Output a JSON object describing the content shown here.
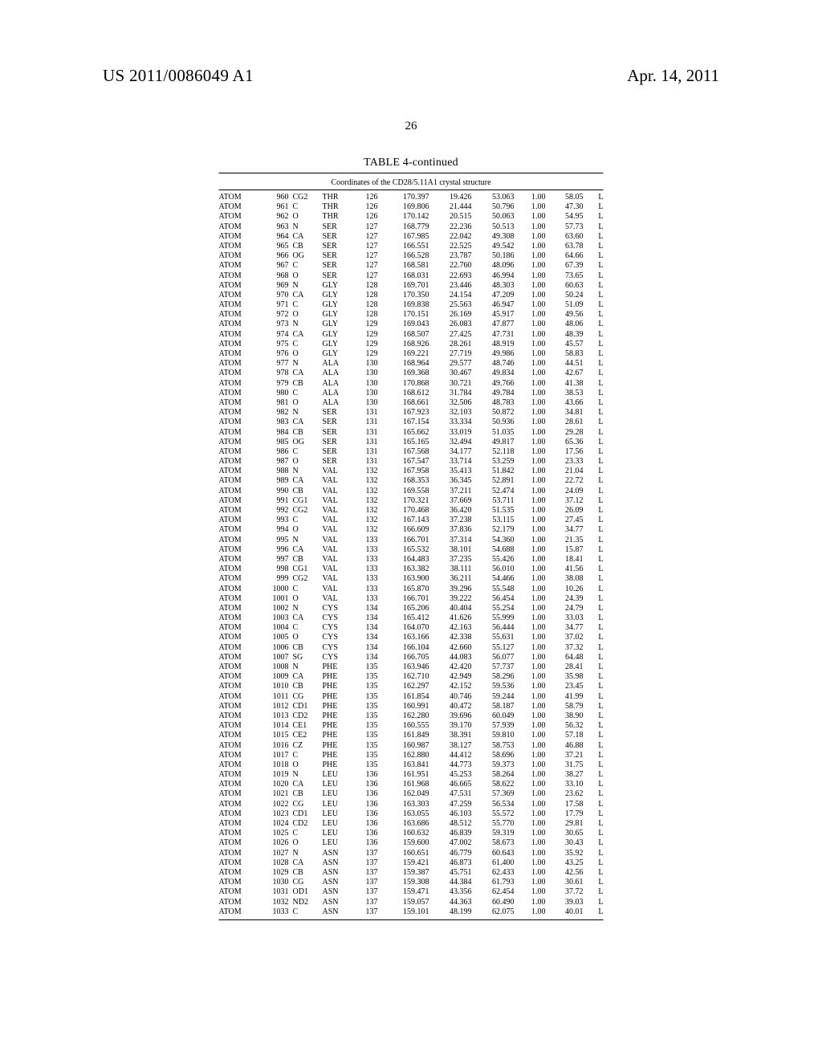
{
  "header": {
    "docnum": "US 2011/0086049 A1",
    "date": "Apr. 14, 2011",
    "pagenum": "26"
  },
  "table": {
    "title": "TABLE 4-continued",
    "subtitle": "Coordinates of the CD28/5.11A1 crystal structure",
    "rows": [
      [
        "ATOM",
        "960",
        "CG2",
        "THR",
        "126",
        "170.397",
        "19.426",
        "53.063",
        "1.00",
        "58.05",
        "L"
      ],
      [
        "ATOM",
        "961",
        "C",
        "THR",
        "126",
        "169.806",
        "21.444",
        "50.796",
        "1.00",
        "47.30",
        "L"
      ],
      [
        "ATOM",
        "962",
        "O",
        "THR",
        "126",
        "170.142",
        "20.515",
        "50.063",
        "1.00",
        "54.95",
        "L"
      ],
      [
        "ATOM",
        "963",
        "N",
        "SER",
        "127",
        "168.779",
        "22.236",
        "50.513",
        "1.00",
        "57.73",
        "L"
      ],
      [
        "ATOM",
        "964",
        "CA",
        "SER",
        "127",
        "167.985",
        "22.042",
        "49.308",
        "1.00",
        "63.60",
        "L"
      ],
      [
        "ATOM",
        "965",
        "CB",
        "SER",
        "127",
        "166.551",
        "22.525",
        "49.542",
        "1.00",
        "63.78",
        "L"
      ],
      [
        "ATOM",
        "966",
        "OG",
        "SER",
        "127",
        "166.528",
        "23.787",
        "50.186",
        "1.00",
        "64.66",
        "L"
      ],
      [
        "ATOM",
        "967",
        "C",
        "SER",
        "127",
        "168.581",
        "22.760",
        "48.096",
        "1.00",
        "67.39",
        "L"
      ],
      [
        "ATOM",
        "968",
        "O",
        "SER",
        "127",
        "168.031",
        "22.693",
        "46.994",
        "1.00",
        "73.65",
        "L"
      ],
      [
        "ATOM",
        "969",
        "N",
        "GLY",
        "128",
        "169.701",
        "23.446",
        "48.303",
        "1.00",
        "60.63",
        "L"
      ],
      [
        "ATOM",
        "970",
        "CA",
        "GLY",
        "128",
        "170.350",
        "24.154",
        "47.209",
        "1.00",
        "50.24",
        "L"
      ],
      [
        "ATOM",
        "971",
        "C",
        "GLY",
        "128",
        "169.838",
        "25.563",
        "46.947",
        "1.00",
        "51.09",
        "L"
      ],
      [
        "ATOM",
        "972",
        "O",
        "GLY",
        "128",
        "170.151",
        "26.169",
        "45.917",
        "1.00",
        "49.56",
        "L"
      ],
      [
        "ATOM",
        "973",
        "N",
        "GLY",
        "129",
        "169.043",
        "26.083",
        "47.877",
        "1.00",
        "48.06",
        "L"
      ],
      [
        "ATOM",
        "974",
        "CA",
        "GLY",
        "129",
        "168.507",
        "27.425",
        "47.731",
        "1.00",
        "48.39",
        "L"
      ],
      [
        "ATOM",
        "975",
        "C",
        "GLY",
        "129",
        "168.926",
        "28.261",
        "48.919",
        "1.00",
        "45.57",
        "L"
      ],
      [
        "ATOM",
        "976",
        "O",
        "GLY",
        "129",
        "169.221",
        "27.719",
        "49.986",
        "1.00",
        "58.83",
        "L"
      ],
      [
        "ATOM",
        "977",
        "N",
        "ALA",
        "130",
        "168.964",
        "29.577",
        "48.746",
        "1.00",
        "44.51",
        "L"
      ],
      [
        "ATOM",
        "978",
        "CA",
        "ALA",
        "130",
        "169.368",
        "30.467",
        "49.834",
        "1.00",
        "42.67",
        "L"
      ],
      [
        "ATOM",
        "979",
        "CB",
        "ALA",
        "130",
        "170.868",
        "30.721",
        "49.766",
        "1.00",
        "41.38",
        "L"
      ],
      [
        "ATOM",
        "980",
        "C",
        "ALA",
        "130",
        "168.612",
        "31.784",
        "49.784",
        "1.00",
        "38.53",
        "L"
      ],
      [
        "ATOM",
        "981",
        "O",
        "ALA",
        "130",
        "168.661",
        "32.506",
        "48.783",
        "1.00",
        "43.66",
        "L"
      ],
      [
        "ATOM",
        "982",
        "N",
        "SER",
        "131",
        "167.923",
        "32.103",
        "50.872",
        "1.00",
        "34.81",
        "L"
      ],
      [
        "ATOM",
        "983",
        "CA",
        "SER",
        "131",
        "167.154",
        "33.334",
        "50.936",
        "1.00",
        "28.61",
        "L"
      ],
      [
        "ATOM",
        "984",
        "CB",
        "SER",
        "131",
        "165.662",
        "33.019",
        "51.035",
        "1.00",
        "29.28",
        "L"
      ],
      [
        "ATOM",
        "985",
        "OG",
        "SER",
        "131",
        "165.165",
        "32.494",
        "49.817",
        "1.00",
        "65.36",
        "L"
      ],
      [
        "ATOM",
        "986",
        "C",
        "SER",
        "131",
        "167.568",
        "34.177",
        "52.118",
        "1.00",
        "17.56",
        "L"
      ],
      [
        "ATOM",
        "987",
        "O",
        "SER",
        "131",
        "167.547",
        "33.714",
        "53.259",
        "1.00",
        "23.33",
        "L"
      ],
      [
        "ATOM",
        "988",
        "N",
        "VAL",
        "132",
        "167.958",
        "35.413",
        "51.842",
        "1.00",
        "21.04",
        "L"
      ],
      [
        "ATOM",
        "989",
        "CA",
        "VAL",
        "132",
        "168.353",
        "36.345",
        "52.891",
        "1.00",
        "22.72",
        "L"
      ],
      [
        "ATOM",
        "990",
        "CB",
        "VAL",
        "132",
        "169.558",
        "37.211",
        "52.474",
        "1.00",
        "24.09",
        "L"
      ],
      [
        "ATOM",
        "991",
        "CG1",
        "VAL",
        "132",
        "170.321",
        "37.669",
        "53.711",
        "1.00",
        "37.12",
        "L"
      ],
      [
        "ATOM",
        "992",
        "CG2",
        "VAL",
        "132",
        "170.468",
        "36.420",
        "51.535",
        "1.00",
        "26.09",
        "L"
      ],
      [
        "ATOM",
        "993",
        "C",
        "VAL",
        "132",
        "167.143",
        "37.238",
        "53.115",
        "1.00",
        "27.45",
        "L"
      ],
      [
        "ATOM",
        "994",
        "O",
        "VAL",
        "132",
        "166.609",
        "37.836",
        "52.179",
        "1.00",
        "34.77",
        "L"
      ],
      [
        "ATOM",
        "995",
        "N",
        "VAL",
        "133",
        "166.701",
        "37.314",
        "54.360",
        "1.00",
        "21.35",
        "L"
      ],
      [
        "ATOM",
        "996",
        "CA",
        "VAL",
        "133",
        "165.532",
        "38.101",
        "54.688",
        "1.00",
        "15.87",
        "L"
      ],
      [
        "ATOM",
        "997",
        "CB",
        "VAL",
        "133",
        "164.483",
        "37.235",
        "55.426",
        "1.00",
        "18.41",
        "L"
      ],
      [
        "ATOM",
        "998",
        "CG1",
        "VAL",
        "133",
        "163.382",
        "38.111",
        "56.010",
        "1.00",
        "41.56",
        "L"
      ],
      [
        "ATOM",
        "999",
        "CG2",
        "VAL",
        "133",
        "163.900",
        "36.211",
        "54.466",
        "1.00",
        "38.08",
        "L"
      ],
      [
        "ATOM",
        "1000",
        "C",
        "VAL",
        "133",
        "165.870",
        "39.296",
        "55.548",
        "1.00",
        "10.26",
        "L"
      ],
      [
        "ATOM",
        "1001",
        "O",
        "VAL",
        "133",
        "166.701",
        "39.222",
        "56.454",
        "1.00",
        "24.39",
        "L"
      ],
      [
        "ATOM",
        "1002",
        "N",
        "CYS",
        "134",
        "165.206",
        "40.404",
        "55.254",
        "1.00",
        "24.79",
        "L"
      ],
      [
        "ATOM",
        "1003",
        "CA",
        "CYS",
        "134",
        "165.412",
        "41.626",
        "55.999",
        "1.00",
        "33.03",
        "L"
      ],
      [
        "ATOM",
        "1004",
        "C",
        "CYS",
        "134",
        "164.070",
        "42.163",
        "56.444",
        "1.00",
        "34.77",
        "L"
      ],
      [
        "ATOM",
        "1005",
        "O",
        "CYS",
        "134",
        "163.166",
        "42.338",
        "55.631",
        "1.00",
        "37.02",
        "L"
      ],
      [
        "ATOM",
        "1006",
        "CB",
        "CYS",
        "134",
        "166.104",
        "42.660",
        "55.127",
        "1.00",
        "37.32",
        "L"
      ],
      [
        "ATOM",
        "1007",
        "SG",
        "CYS",
        "134",
        "166.705",
        "44.083",
        "56.077",
        "1.00",
        "64.48",
        "L"
      ],
      [
        "ATOM",
        "1008",
        "N",
        "PHE",
        "135",
        "163.946",
        "42.420",
        "57.737",
        "1.00",
        "28.41",
        "L"
      ],
      [
        "ATOM",
        "1009",
        "CA",
        "PHE",
        "135",
        "162.710",
        "42.949",
        "58.296",
        "1.00",
        "35.98",
        "L"
      ],
      [
        "ATOM",
        "1010",
        "CB",
        "PHE",
        "135",
        "162.297",
        "42.152",
        "59.536",
        "1.00",
        "23.45",
        "L"
      ],
      [
        "ATOM",
        "1011",
        "CG",
        "PHE",
        "135",
        "161.854",
        "40.746",
        "59.244",
        "1.00",
        "41.99",
        "L"
      ],
      [
        "ATOM",
        "1012",
        "CD1",
        "PHE",
        "135",
        "160.991",
        "40.472",
        "58.187",
        "1.00",
        "58.79",
        "L"
      ],
      [
        "ATOM",
        "1013",
        "CD2",
        "PHE",
        "135",
        "162.280",
        "39.696",
        "60.049",
        "1.00",
        "38.90",
        "L"
      ],
      [
        "ATOM",
        "1014",
        "CE1",
        "PHE",
        "135",
        "160.555",
        "39.170",
        "57.939",
        "1.00",
        "56.32",
        "L"
      ],
      [
        "ATOM",
        "1015",
        "CE2",
        "PHE",
        "135",
        "161.849",
        "38.391",
        "59.810",
        "1.00",
        "57.18",
        "L"
      ],
      [
        "ATOM",
        "1016",
        "CZ",
        "PHE",
        "135",
        "160.987",
        "38.127",
        "58.753",
        "1.00",
        "46.88",
        "L"
      ],
      [
        "ATOM",
        "1017",
        "C",
        "PHE",
        "135",
        "162.880",
        "44.412",
        "58.696",
        "1.00",
        "37.21",
        "L"
      ],
      [
        "ATOM",
        "1018",
        "O",
        "PHE",
        "135",
        "163.841",
        "44.773",
        "59.373",
        "1.00",
        "31.75",
        "L"
      ],
      [
        "ATOM",
        "1019",
        "N",
        "LEU",
        "136",
        "161.951",
        "45.253",
        "58.264",
        "1.00",
        "38.27",
        "L"
      ],
      [
        "ATOM",
        "1020",
        "CA",
        "LEU",
        "136",
        "161.968",
        "46.665",
        "58.622",
        "1.00",
        "33.10",
        "L"
      ],
      [
        "ATOM",
        "1021",
        "CB",
        "LEU",
        "136",
        "162.049",
        "47.531",
        "57.369",
        "1.00",
        "23.62",
        "L"
      ],
      [
        "ATOM",
        "1022",
        "CG",
        "LEU",
        "136",
        "163.303",
        "47.259",
        "56.534",
        "1.00",
        "17.58",
        "L"
      ],
      [
        "ATOM",
        "1023",
        "CD1",
        "LEU",
        "136",
        "163.055",
        "46.103",
        "55.572",
        "1.00",
        "17.79",
        "L"
      ],
      [
        "ATOM",
        "1024",
        "CD2",
        "LEU",
        "136",
        "163.686",
        "48.512",
        "55.770",
        "1.00",
        "29.81",
        "L"
      ],
      [
        "ATOM",
        "1025",
        "C",
        "LEU",
        "136",
        "160.632",
        "46.839",
        "59.319",
        "1.00",
        "30.65",
        "L"
      ],
      [
        "ATOM",
        "1026",
        "O",
        "LEU",
        "136",
        "159.600",
        "47.002",
        "58.673",
        "1.00",
        "30.43",
        "L"
      ],
      [
        "ATOM",
        "1027",
        "N",
        "ASN",
        "137",
        "160.651",
        "46.779",
        "60.643",
        "1.00",
        "35.92",
        "L"
      ],
      [
        "ATOM",
        "1028",
        "CA",
        "ASN",
        "137",
        "159.421",
        "46.873",
        "61.400",
        "1.00",
        "43.25",
        "L"
      ],
      [
        "ATOM",
        "1029",
        "CB",
        "ASN",
        "137",
        "159.387",
        "45.751",
        "62.433",
        "1.00",
        "42.56",
        "L"
      ],
      [
        "ATOM",
        "1030",
        "CG",
        "ASN",
        "137",
        "159.308",
        "44.384",
        "61.793",
        "1.00",
        "30.61",
        "L"
      ],
      [
        "ATOM",
        "1031",
        "OD1",
        "ASN",
        "137",
        "159.471",
        "43.356",
        "62.454",
        "1.00",
        "37.72",
        "L"
      ],
      [
        "ATOM",
        "1032",
        "ND2",
        "ASN",
        "137",
        "159.057",
        "44.363",
        "60.490",
        "1.00",
        "39.03",
        "L"
      ],
      [
        "ATOM",
        "1033",
        "C",
        "ASN",
        "137",
        "159.101",
        "48.199",
        "62.075",
        "1.00",
        "40.01",
        "L"
      ]
    ]
  }
}
